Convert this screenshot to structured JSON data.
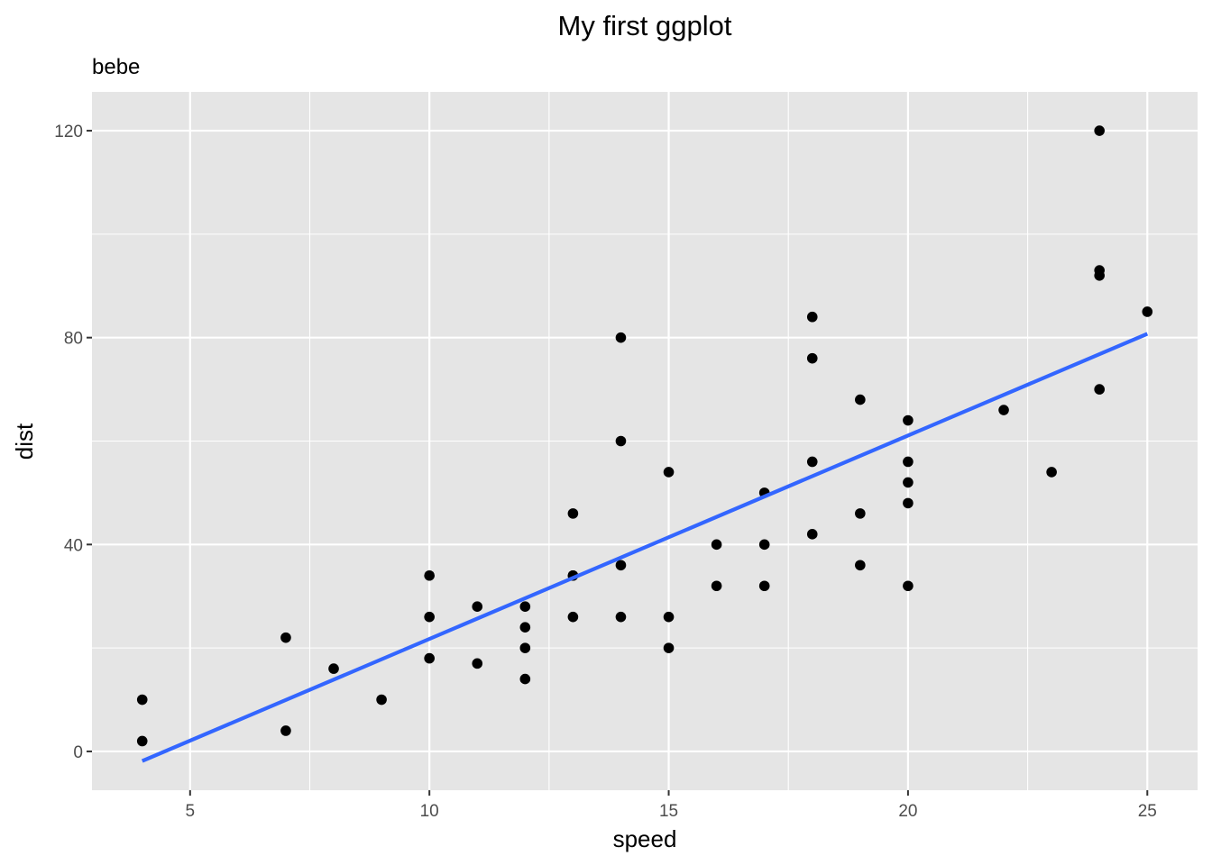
{
  "chart_data": {
    "type": "scatter",
    "title": "My first ggplot",
    "subtitle": "bebe",
    "xlabel": "speed",
    "ylabel": "dist",
    "xlim": [
      2.95,
      26.05
    ],
    "ylim": [
      -7.5,
      127.5
    ],
    "x_ticks": [
      5,
      10,
      15,
      20,
      25
    ],
    "y_ticks": [
      0,
      40,
      80,
      120
    ],
    "x_tick_labels": [
      "5",
      "10",
      "15",
      "20",
      "25"
    ],
    "y_tick_labels": [
      "0",
      "40",
      "80",
      "120"
    ],
    "grid": true,
    "legend": "none",
    "colors": {
      "panel": "#e5e5e5",
      "grid": "#ffffff",
      "points": "#000000",
      "fit_line": "#3366ff"
    },
    "points": [
      {
        "x": 4,
        "y": 2
      },
      {
        "x": 4,
        "y": 10
      },
      {
        "x": 7,
        "y": 4
      },
      {
        "x": 7,
        "y": 22
      },
      {
        "x": 8,
        "y": 16
      },
      {
        "x": 9,
        "y": 10
      },
      {
        "x": 10,
        "y": 18
      },
      {
        "x": 10,
        "y": 26
      },
      {
        "x": 10,
        "y": 34
      },
      {
        "x": 11,
        "y": 17
      },
      {
        "x": 11,
        "y": 28
      },
      {
        "x": 12,
        "y": 14
      },
      {
        "x": 12,
        "y": 20
      },
      {
        "x": 12,
        "y": 24
      },
      {
        "x": 12,
        "y": 28
      },
      {
        "x": 13,
        "y": 26
      },
      {
        "x": 13,
        "y": 34
      },
      {
        "x": 13,
        "y": 34
      },
      {
        "x": 13,
        "y": 46
      },
      {
        "x": 14,
        "y": 26
      },
      {
        "x": 14,
        "y": 36
      },
      {
        "x": 14,
        "y": 60
      },
      {
        "x": 14,
        "y": 80
      },
      {
        "x": 15,
        "y": 20
      },
      {
        "x": 15,
        "y": 26
      },
      {
        "x": 15,
        "y": 54
      },
      {
        "x": 16,
        "y": 32
      },
      {
        "x": 16,
        "y": 40
      },
      {
        "x": 17,
        "y": 32
      },
      {
        "x": 17,
        "y": 40
      },
      {
        "x": 17,
        "y": 50
      },
      {
        "x": 18,
        "y": 42
      },
      {
        "x": 18,
        "y": 56
      },
      {
        "x": 18,
        "y": 76
      },
      {
        "x": 18,
        "y": 84
      },
      {
        "x": 19,
        "y": 36
      },
      {
        "x": 19,
        "y": 46
      },
      {
        "x": 19,
        "y": 68
      },
      {
        "x": 20,
        "y": 32
      },
      {
        "x": 20,
        "y": 48
      },
      {
        "x": 20,
        "y": 52
      },
      {
        "x": 20,
        "y": 56
      },
      {
        "x": 20,
        "y": 64
      },
      {
        "x": 22,
        "y": 66
      },
      {
        "x": 23,
        "y": 54
      },
      {
        "x": 24,
        "y": 70
      },
      {
        "x": 24,
        "y": 92
      },
      {
        "x": 24,
        "y": 93
      },
      {
        "x": 24,
        "y": 120
      },
      {
        "x": 25,
        "y": 85
      }
    ],
    "fit_line": {
      "type": "linear",
      "x": [
        4,
        25
      ],
      "y": [
        -1.85,
        80.73
      ]
    }
  }
}
